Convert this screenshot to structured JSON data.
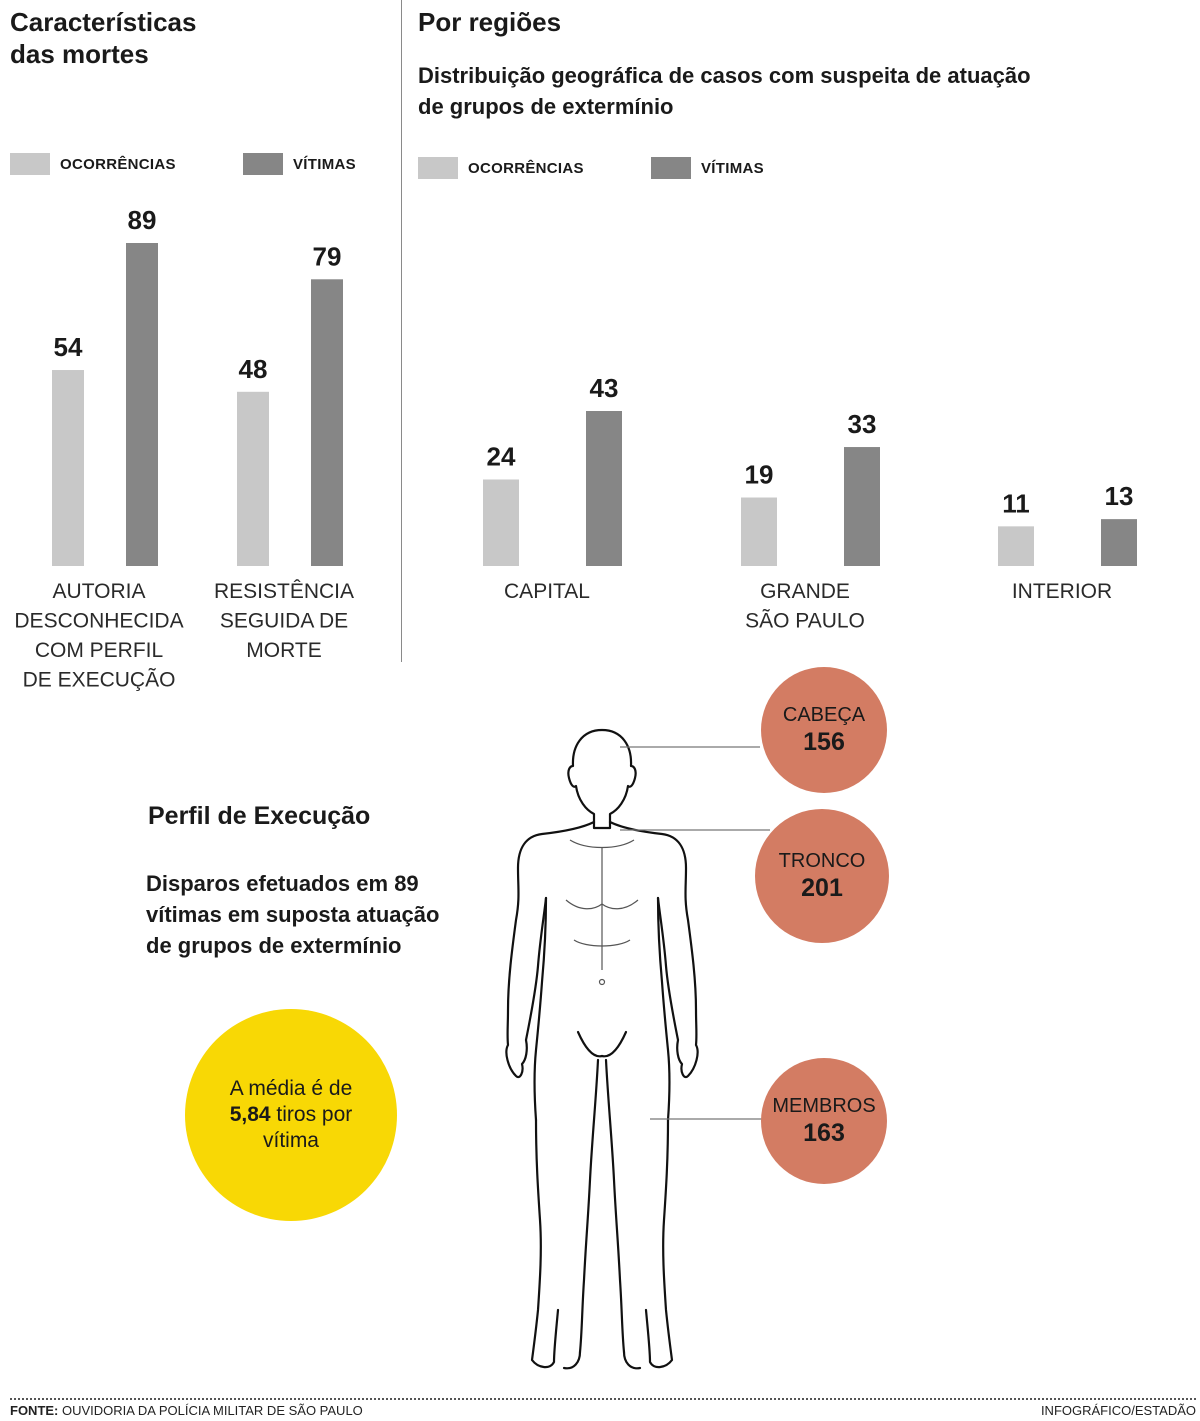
{
  "left": {
    "title_line1": "Características",
    "title_line2": "das mortes",
    "legend": {
      "ocorrencias": "OCORRÊNCIAS",
      "vitimas": "VÍTIMAS"
    }
  },
  "right": {
    "title": "Por regiões",
    "subtitle_line1": "Distribuição geográfica de casos com suspeita de atuação",
    "subtitle_line2": "de grupos de extermínio",
    "legend": {
      "ocorrencias": "OCORRÊNCIAS",
      "vitimas": "VÍTIMAS"
    }
  },
  "colors": {
    "ocorrencias": "#c8c8c8",
    "vitimas": "#868686",
    "accent_yellow": "#f8d805",
    "accent_red": "#d37c63"
  },
  "chart_data": [
    {
      "type": "bar",
      "title": "Características das mortes",
      "categories": [
        [
          "AUTORIA",
          "DESCONHECIDA",
          "COM PERFIL",
          "DE EXECUÇÃO"
        ],
        [
          "RESISTÊNCIA",
          "SEGUIDA DE",
          "MORTE"
        ]
      ],
      "series": [
        {
          "name": "OCORRÊNCIAS",
          "values": [
            54,
            48
          ]
        },
        {
          "name": "VÍTIMAS",
          "values": [
            89,
            79
          ]
        }
      ],
      "ylim": [
        0,
        89
      ],
      "legend": "top",
      "grid": false
    },
    {
      "type": "bar",
      "title": "Por regiões",
      "subtitle": "Distribuição geográfica de casos com suspeita de atuação de grupos de extermínio",
      "categories": [
        [
          "CAPITAL"
        ],
        [
          "GRANDE",
          "SÃO PAULO"
        ],
        [
          "INTERIOR"
        ]
      ],
      "series": [
        {
          "name": "OCORRÊNCIAS",
          "values": [
            24,
            19,
            11
          ]
        },
        {
          "name": "VÍTIMAS",
          "values": [
            43,
            33,
            13
          ]
        }
      ],
      "ylim": [
        0,
        43
      ],
      "legend": "top",
      "grid": false
    }
  ],
  "perfil": {
    "title": "Perfil de Execução",
    "sub_line1": "Disparos efetuados em 89",
    "sub_line2": "vítimas em suposta atuação",
    "sub_line3": "de grupos de extermínio",
    "media_pre": "A média é de",
    "media_value": "5,84",
    "media_post": "tiros por vítima",
    "body_parts": [
      {
        "label": "CABEÇA",
        "value": "156"
      },
      {
        "label": "TRONCO",
        "value": "201"
      },
      {
        "label": "MEMBROS",
        "value": "163"
      }
    ]
  },
  "footer": {
    "fonte_label": "FONTE:",
    "fonte_text": "OUVIDORIA DA POLÍCIA MILITAR DE SÃO PAULO",
    "credit": "INFOGRÁFICO/ESTADÃO"
  }
}
